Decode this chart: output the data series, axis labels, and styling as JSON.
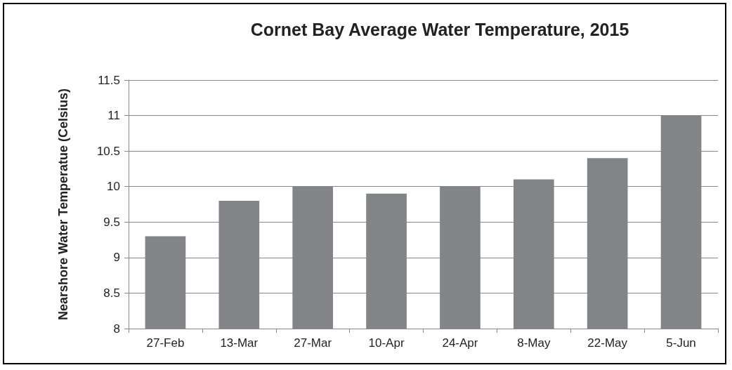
{
  "chart_data": {
    "type": "bar",
    "title": "Cornet Bay Average Water Temperature, 2015",
    "ylabel": "Nearshore Water Temperatue (Celsius)",
    "categories": [
      "27-Feb",
      "13-Mar",
      "27-Mar",
      "10-Apr",
      "24-Apr",
      "8-May",
      "22-May",
      "5-Jun"
    ],
    "values": [
      9.3,
      9.8,
      10,
      9.9,
      10,
      10.1,
      10.4,
      11
    ],
    "color": "#838487",
    "ylim": [
      8,
      11.5
    ],
    "yticks": [
      8,
      8.5,
      9,
      9.5,
      10,
      10.5,
      11,
      11.5
    ],
    "grid": "y"
  }
}
